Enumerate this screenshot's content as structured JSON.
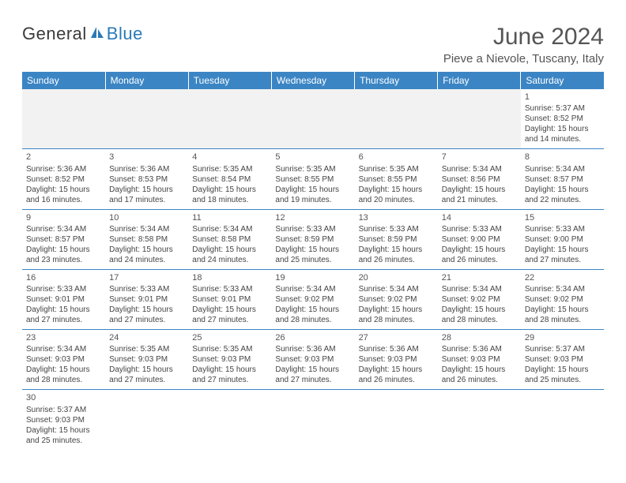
{
  "logo": {
    "text_general": "General",
    "text_blue": "Blue"
  },
  "header": {
    "month_title": "June 2024",
    "location": "Pieve a Nievole, Tuscany, Italy"
  },
  "colors": {
    "header_bg": "#3b85c4",
    "header_text": "#ffffff",
    "blankrow_bg": "#f2f2f2",
    "cell_border": "#3b85c4",
    "body_text": "#444444",
    "title_text": "#555555",
    "logo_gray": "#3a3a3a",
    "logo_blue": "#2a7ab8"
  },
  "day_headers": [
    "Sunday",
    "Monday",
    "Tuesday",
    "Wednesday",
    "Thursday",
    "Friday",
    "Saturday"
  ],
  "weeks": [
    [
      null,
      null,
      null,
      null,
      null,
      null,
      {
        "n": "1",
        "sr": "Sunrise: 5:37 AM",
        "ss": "Sunset: 8:52 PM",
        "d1": "Daylight: 15 hours",
        "d2": "and 14 minutes."
      }
    ],
    [
      {
        "n": "2",
        "sr": "Sunrise: 5:36 AM",
        "ss": "Sunset: 8:52 PM",
        "d1": "Daylight: 15 hours",
        "d2": "and 16 minutes."
      },
      {
        "n": "3",
        "sr": "Sunrise: 5:36 AM",
        "ss": "Sunset: 8:53 PM",
        "d1": "Daylight: 15 hours",
        "d2": "and 17 minutes."
      },
      {
        "n": "4",
        "sr": "Sunrise: 5:35 AM",
        "ss": "Sunset: 8:54 PM",
        "d1": "Daylight: 15 hours",
        "d2": "and 18 minutes."
      },
      {
        "n": "5",
        "sr": "Sunrise: 5:35 AM",
        "ss": "Sunset: 8:55 PM",
        "d1": "Daylight: 15 hours",
        "d2": "and 19 minutes."
      },
      {
        "n": "6",
        "sr": "Sunrise: 5:35 AM",
        "ss": "Sunset: 8:55 PM",
        "d1": "Daylight: 15 hours",
        "d2": "and 20 minutes."
      },
      {
        "n": "7",
        "sr": "Sunrise: 5:34 AM",
        "ss": "Sunset: 8:56 PM",
        "d1": "Daylight: 15 hours",
        "d2": "and 21 minutes."
      },
      {
        "n": "8",
        "sr": "Sunrise: 5:34 AM",
        "ss": "Sunset: 8:57 PM",
        "d1": "Daylight: 15 hours",
        "d2": "and 22 minutes."
      }
    ],
    [
      {
        "n": "9",
        "sr": "Sunrise: 5:34 AM",
        "ss": "Sunset: 8:57 PM",
        "d1": "Daylight: 15 hours",
        "d2": "and 23 minutes."
      },
      {
        "n": "10",
        "sr": "Sunrise: 5:34 AM",
        "ss": "Sunset: 8:58 PM",
        "d1": "Daylight: 15 hours",
        "d2": "and 24 minutes."
      },
      {
        "n": "11",
        "sr": "Sunrise: 5:34 AM",
        "ss": "Sunset: 8:58 PM",
        "d1": "Daylight: 15 hours",
        "d2": "and 24 minutes."
      },
      {
        "n": "12",
        "sr": "Sunrise: 5:33 AM",
        "ss": "Sunset: 8:59 PM",
        "d1": "Daylight: 15 hours",
        "d2": "and 25 minutes."
      },
      {
        "n": "13",
        "sr": "Sunrise: 5:33 AM",
        "ss": "Sunset: 8:59 PM",
        "d1": "Daylight: 15 hours",
        "d2": "and 26 minutes."
      },
      {
        "n": "14",
        "sr": "Sunrise: 5:33 AM",
        "ss": "Sunset: 9:00 PM",
        "d1": "Daylight: 15 hours",
        "d2": "and 26 minutes."
      },
      {
        "n": "15",
        "sr": "Sunrise: 5:33 AM",
        "ss": "Sunset: 9:00 PM",
        "d1": "Daylight: 15 hours",
        "d2": "and 27 minutes."
      }
    ],
    [
      {
        "n": "16",
        "sr": "Sunrise: 5:33 AM",
        "ss": "Sunset: 9:01 PM",
        "d1": "Daylight: 15 hours",
        "d2": "and 27 minutes."
      },
      {
        "n": "17",
        "sr": "Sunrise: 5:33 AM",
        "ss": "Sunset: 9:01 PM",
        "d1": "Daylight: 15 hours",
        "d2": "and 27 minutes."
      },
      {
        "n": "18",
        "sr": "Sunrise: 5:33 AM",
        "ss": "Sunset: 9:01 PM",
        "d1": "Daylight: 15 hours",
        "d2": "and 27 minutes."
      },
      {
        "n": "19",
        "sr": "Sunrise: 5:34 AM",
        "ss": "Sunset: 9:02 PM",
        "d1": "Daylight: 15 hours",
        "d2": "and 28 minutes."
      },
      {
        "n": "20",
        "sr": "Sunrise: 5:34 AM",
        "ss": "Sunset: 9:02 PM",
        "d1": "Daylight: 15 hours",
        "d2": "and 28 minutes."
      },
      {
        "n": "21",
        "sr": "Sunrise: 5:34 AM",
        "ss": "Sunset: 9:02 PM",
        "d1": "Daylight: 15 hours",
        "d2": "and 28 minutes."
      },
      {
        "n": "22",
        "sr": "Sunrise: 5:34 AM",
        "ss": "Sunset: 9:02 PM",
        "d1": "Daylight: 15 hours",
        "d2": "and 28 minutes."
      }
    ],
    [
      {
        "n": "23",
        "sr": "Sunrise: 5:34 AM",
        "ss": "Sunset: 9:03 PM",
        "d1": "Daylight: 15 hours",
        "d2": "and 28 minutes."
      },
      {
        "n": "24",
        "sr": "Sunrise: 5:35 AM",
        "ss": "Sunset: 9:03 PM",
        "d1": "Daylight: 15 hours",
        "d2": "and 27 minutes."
      },
      {
        "n": "25",
        "sr": "Sunrise: 5:35 AM",
        "ss": "Sunset: 9:03 PM",
        "d1": "Daylight: 15 hours",
        "d2": "and 27 minutes."
      },
      {
        "n": "26",
        "sr": "Sunrise: 5:36 AM",
        "ss": "Sunset: 9:03 PM",
        "d1": "Daylight: 15 hours",
        "d2": "and 27 minutes."
      },
      {
        "n": "27",
        "sr": "Sunrise: 5:36 AM",
        "ss": "Sunset: 9:03 PM",
        "d1": "Daylight: 15 hours",
        "d2": "and 26 minutes."
      },
      {
        "n": "28",
        "sr": "Sunrise: 5:36 AM",
        "ss": "Sunset: 9:03 PM",
        "d1": "Daylight: 15 hours",
        "d2": "and 26 minutes."
      },
      {
        "n": "29",
        "sr": "Sunrise: 5:37 AM",
        "ss": "Sunset: 9:03 PM",
        "d1": "Daylight: 15 hours",
        "d2": "and 25 minutes."
      }
    ],
    [
      {
        "n": "30",
        "sr": "Sunrise: 5:37 AM",
        "ss": "Sunset: 9:03 PM",
        "d1": "Daylight: 15 hours",
        "d2": "and 25 minutes."
      },
      null,
      null,
      null,
      null,
      null,
      null
    ]
  ]
}
